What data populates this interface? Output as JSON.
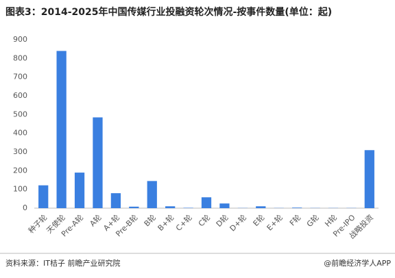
{
  "chart_data": {
    "type": "bar",
    "title": "图表3：2014-2025年中国传媒行业投融资轮次情况-按事件数量(单位：起)",
    "categories": [
      "种子轮",
      "天使轮",
      "Pre-A轮",
      "A轮",
      "A+轮",
      "Pre-B轮",
      "B轮",
      "B+轮",
      "C+轮",
      "C轮",
      "D轮",
      "D+轮",
      "E轮",
      "E+轮",
      "F轮",
      "G轮",
      "H轮",
      "Pre-IPO",
      "战略投资"
    ],
    "values": [
      122,
      840,
      190,
      485,
      80,
      8,
      145,
      10,
      2,
      58,
      25,
      1,
      10,
      1,
      3,
      1,
      1,
      1,
      310
    ],
    "color": "#3a7fe0",
    "ylim": [
      0,
      900
    ],
    "yticks": [
      0,
      100,
      200,
      300,
      400,
      500,
      600,
      700,
      800,
      900
    ],
    "grid": false,
    "source": "资料来源：IT桔子 前瞻产业研究院",
    "credit": "@前瞻经济学人APP"
  }
}
